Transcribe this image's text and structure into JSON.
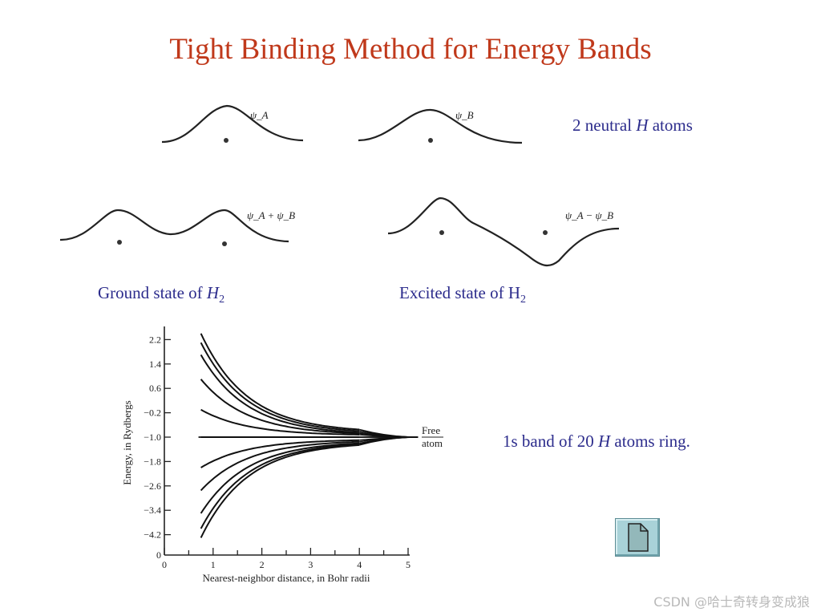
{
  "title": "Tight Binding Method for Energy Bands",
  "wavefunctions": {
    "psi_a": "ψ_A",
    "psi_b": "ψ_B",
    "psi_sum": "ψ_A + ψ_B",
    "psi_diff": "ψ_A − ψ_B"
  },
  "captions": {
    "neutral_atoms": {
      "pre": "2 neutral ",
      "italic": "H",
      "post": " atoms"
    },
    "ground_state": {
      "pre": "Ground state of ",
      "italic": "H",
      "sub": "2"
    },
    "excited_state": {
      "pre": "Excited state of H",
      "sub": "2"
    },
    "band": {
      "pre": "1s band of 20 ",
      "italic": "H",
      "post": " atoms ring."
    }
  },
  "chart_data": {
    "type": "line",
    "xlabel": "Nearest-neighbor distance, in Bohr radii",
    "ylabel": "Energy, in Rydbergs",
    "xlim": [
      0,
      5
    ],
    "ylim": [
      -5.0,
      2.6
    ],
    "x_ticks": [
      "0",
      "1",
      "2",
      "3",
      "4",
      "5"
    ],
    "y_ticks": [
      "2.2",
      "1.4",
      "0.6",
      "−0.2",
      "−1.0",
      "−1.8",
      "−2.6",
      "−3.4",
      "−4.2"
    ],
    "y_tick_values": [
      2.2,
      1.4,
      0.6,
      -0.2,
      -1.0,
      -1.8,
      -2.6,
      -3.4,
      -4.2
    ],
    "y_axis_zero_label": "0",
    "x_start": 0.75,
    "x_end": 4.0,
    "free_atom_energy": -1.0,
    "free_atom_label": [
      "Free",
      "atom"
    ],
    "series_start_energies": [
      2.4,
      2.1,
      1.7,
      0.9,
      -0.1,
      -1.0,
      -2.0,
      -2.75,
      -3.5,
      -4.0,
      -4.3
    ],
    "series_end_energies": [
      -0.75,
      -0.8,
      -0.85,
      -0.88,
      -0.92,
      -1.0,
      -1.1,
      -1.15,
      -1.2,
      -1.23,
      -1.26
    ]
  },
  "watermark": "CSDN @哈士奇转身变成狼",
  "doc_button_label": "document-icon"
}
